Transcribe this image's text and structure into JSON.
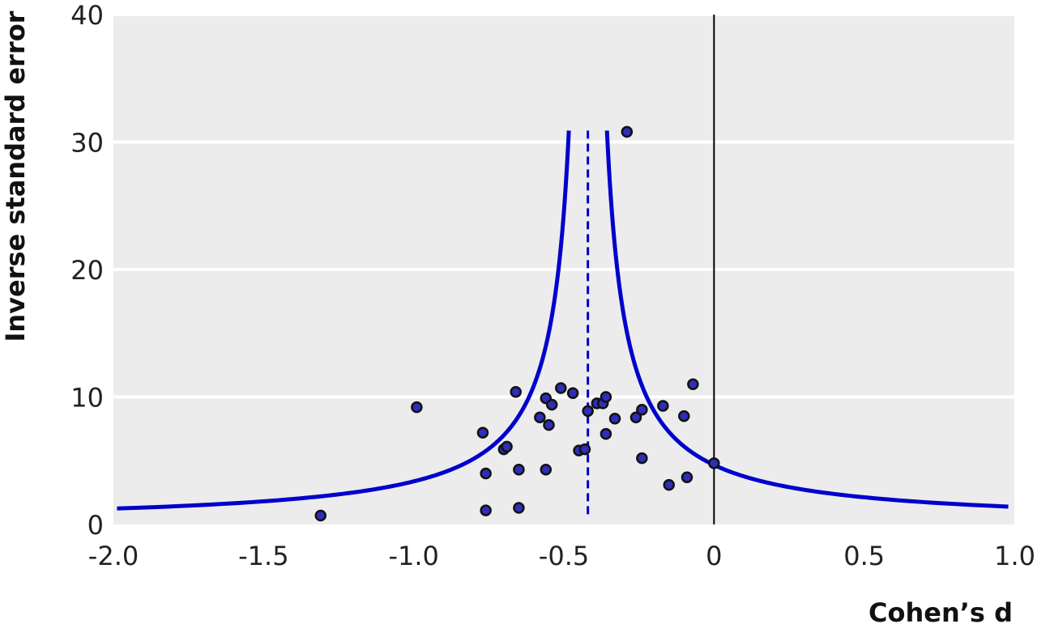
{
  "chart_data": {
    "type": "scatter",
    "title": "",
    "xlabel": "Cohen’s d",
    "ylabel": "Inverse standard error",
    "xlim": [
      -2.0,
      1.0
    ],
    "ylim": [
      0,
      40
    ],
    "x_tick_values": [
      -2.0,
      -1.5,
      -1.0,
      -0.5,
      0,
      0.5,
      1.0
    ],
    "x_tick_labels": [
      "-2.0",
      "-1.5",
      "-1.0",
      "-0.5",
      "0",
      "0.5",
      "1.0"
    ],
    "y_tick_values": [
      0,
      10,
      20,
      30,
      40
    ],
    "y_tick_labels": [
      "0",
      "10",
      "20",
      "30",
      "40"
    ],
    "grid": "horizontal",
    "background_color": "#ececec",
    "gridline_color": "#ffffff",
    "point_color": "#2e2eb8",
    "funnel_color": "#0000cc",
    "pooled_effect": -0.42,
    "null_line_x": 0,
    "funnel_max_y": 30.9,
    "series": [
      {
        "points": [
          {
            "x": -1.31,
            "y": 0.7
          },
          {
            "x": -0.99,
            "y": 9.2
          },
          {
            "x": -0.77,
            "y": 7.2
          },
          {
            "x": -0.76,
            "y": 4.0
          },
          {
            "x": -0.76,
            "y": 1.1
          },
          {
            "x": -0.7,
            "y": 5.9
          },
          {
            "x": -0.69,
            "y": 6.1
          },
          {
            "x": -0.66,
            "y": 10.4
          },
          {
            "x": -0.65,
            "y": 4.3
          },
          {
            "x": -0.65,
            "y": 1.3
          },
          {
            "x": -0.58,
            "y": 8.4
          },
          {
            "x": -0.56,
            "y": 9.9
          },
          {
            "x": -0.56,
            "y": 4.3
          },
          {
            "x": -0.55,
            "y": 7.8
          },
          {
            "x": -0.54,
            "y": 9.4
          },
          {
            "x": -0.51,
            "y": 10.7
          },
          {
            "x": -0.47,
            "y": 10.3
          },
          {
            "x": -0.45,
            "y": 5.8
          },
          {
            "x": -0.43,
            "y": 5.9
          },
          {
            "x": -0.42,
            "y": 8.9
          },
          {
            "x": -0.39,
            "y": 9.5
          },
          {
            "x": -0.37,
            "y": 9.5
          },
          {
            "x": -0.36,
            "y": 10.0
          },
          {
            "x": -0.36,
            "y": 7.1
          },
          {
            "x": -0.33,
            "y": 8.3
          },
          {
            "x": -0.29,
            "y": 30.8
          },
          {
            "x": -0.26,
            "y": 8.4
          },
          {
            "x": -0.24,
            "y": 9.0
          },
          {
            "x": -0.24,
            "y": 5.2
          },
          {
            "x": -0.17,
            "y": 9.3
          },
          {
            "x": -0.15,
            "y": 3.1
          },
          {
            "x": -0.1,
            "y": 8.5
          },
          {
            "x": -0.09,
            "y": 3.7
          },
          {
            "x": -0.07,
            "y": 11.0
          },
          {
            "x": 0.0,
            "y": 4.8
          }
        ]
      }
    ]
  }
}
